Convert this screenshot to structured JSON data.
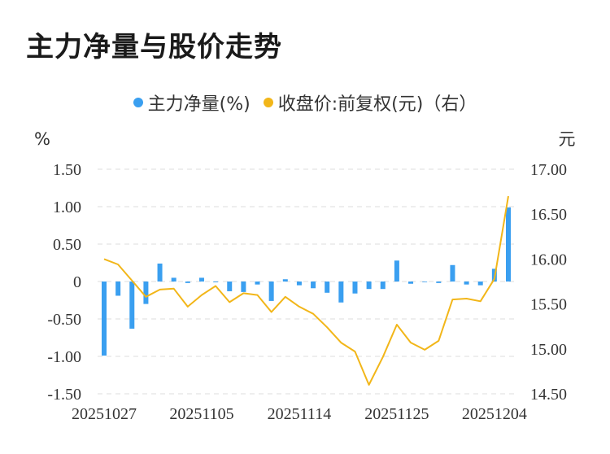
{
  "title": "主力净量与股价走势",
  "colors": {
    "bar": "#3a9ff0",
    "line": "#f2b619",
    "grid": "#dddddd"
  },
  "legend": {
    "bar_label": "主力净量(%)",
    "line_label": "收盘价:前复权(元)（右）"
  },
  "chart_data": {
    "type": "bar",
    "title": "主力净量与股价走势",
    "left_unit": "%",
    "right_unit": "元",
    "y_left_ticks": [
      "1.50",
      "1.00",
      "0.50",
      "0",
      "-0.50",
      "-1.00",
      "-1.50"
    ],
    "y_right_ticks": [
      "17.00",
      "16.50",
      "16.00",
      "15.50",
      "15.00",
      "14.50"
    ],
    "ylim_left": [
      -1.5,
      1.5
    ],
    "ylim_right": [
      14.5,
      17.0
    ],
    "x_tick_labels": [
      "20251027",
      "20251105",
      "20251114",
      "20251125",
      "20251204"
    ],
    "x_tick_indices": [
      0,
      7,
      14,
      21,
      28
    ],
    "grid": true,
    "legend_position": "top-center",
    "series": [
      {
        "name": "主力净量(%)",
        "type": "bar",
        "axis": "left",
        "values": [
          -0.99,
          -0.19,
          -0.63,
          -0.3,
          0.24,
          0.05,
          -0.02,
          0.05,
          -0.01,
          -0.13,
          -0.14,
          -0.04,
          -0.26,
          0.03,
          -0.05,
          -0.09,
          -0.15,
          -0.28,
          -0.16,
          -0.1,
          -0.1,
          0.28,
          -0.03,
          0.0,
          -0.02,
          0.22,
          -0.04,
          -0.05,
          0.17,
          0.99
        ]
      },
      {
        "name": "收盘价:前复权(元)（右）",
        "type": "line",
        "axis": "right",
        "values": [
          16.0,
          15.94,
          15.76,
          15.58,
          15.66,
          15.67,
          15.47,
          15.6,
          15.7,
          15.52,
          15.62,
          15.6,
          15.41,
          15.58,
          15.47,
          15.39,
          15.24,
          15.07,
          14.97,
          14.6,
          14.91,
          15.27,
          15.07,
          14.99,
          15.09,
          15.55,
          15.56,
          15.53,
          15.78,
          16.7
        ]
      }
    ]
  }
}
